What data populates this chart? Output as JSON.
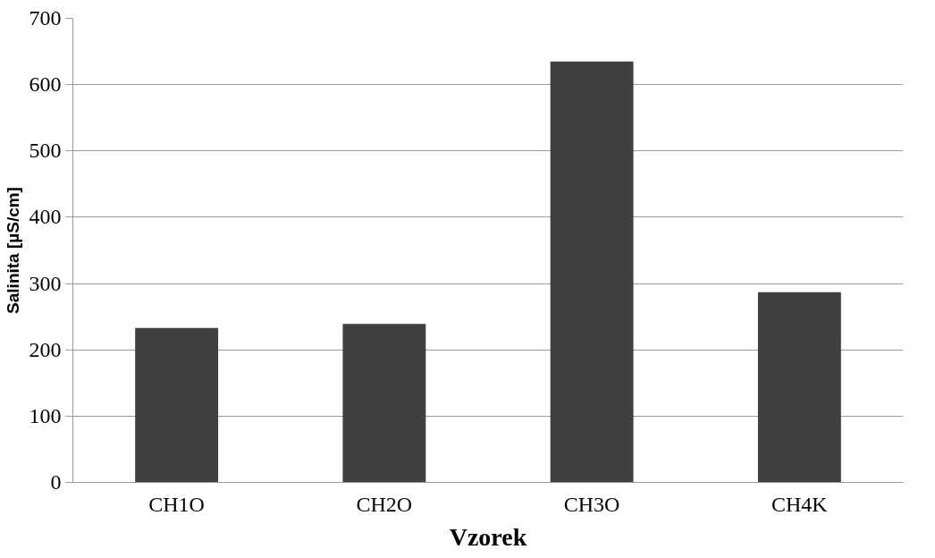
{
  "chart_data": {
    "type": "bar",
    "xlabel": "Vzorek",
    "ylabel": "Salinita [µS/cm]",
    "categories": [
      "CH1O",
      "CH2O",
      "CH3O",
      "CH4K"
    ],
    "values": [
      233,
      239,
      635,
      287
    ],
    "color": "#404040",
    "ylim": [
      0,
      700
    ],
    "yticks": [
      0,
      100,
      200,
      300,
      400,
      500,
      600,
      700
    ],
    "grid": "y"
  }
}
